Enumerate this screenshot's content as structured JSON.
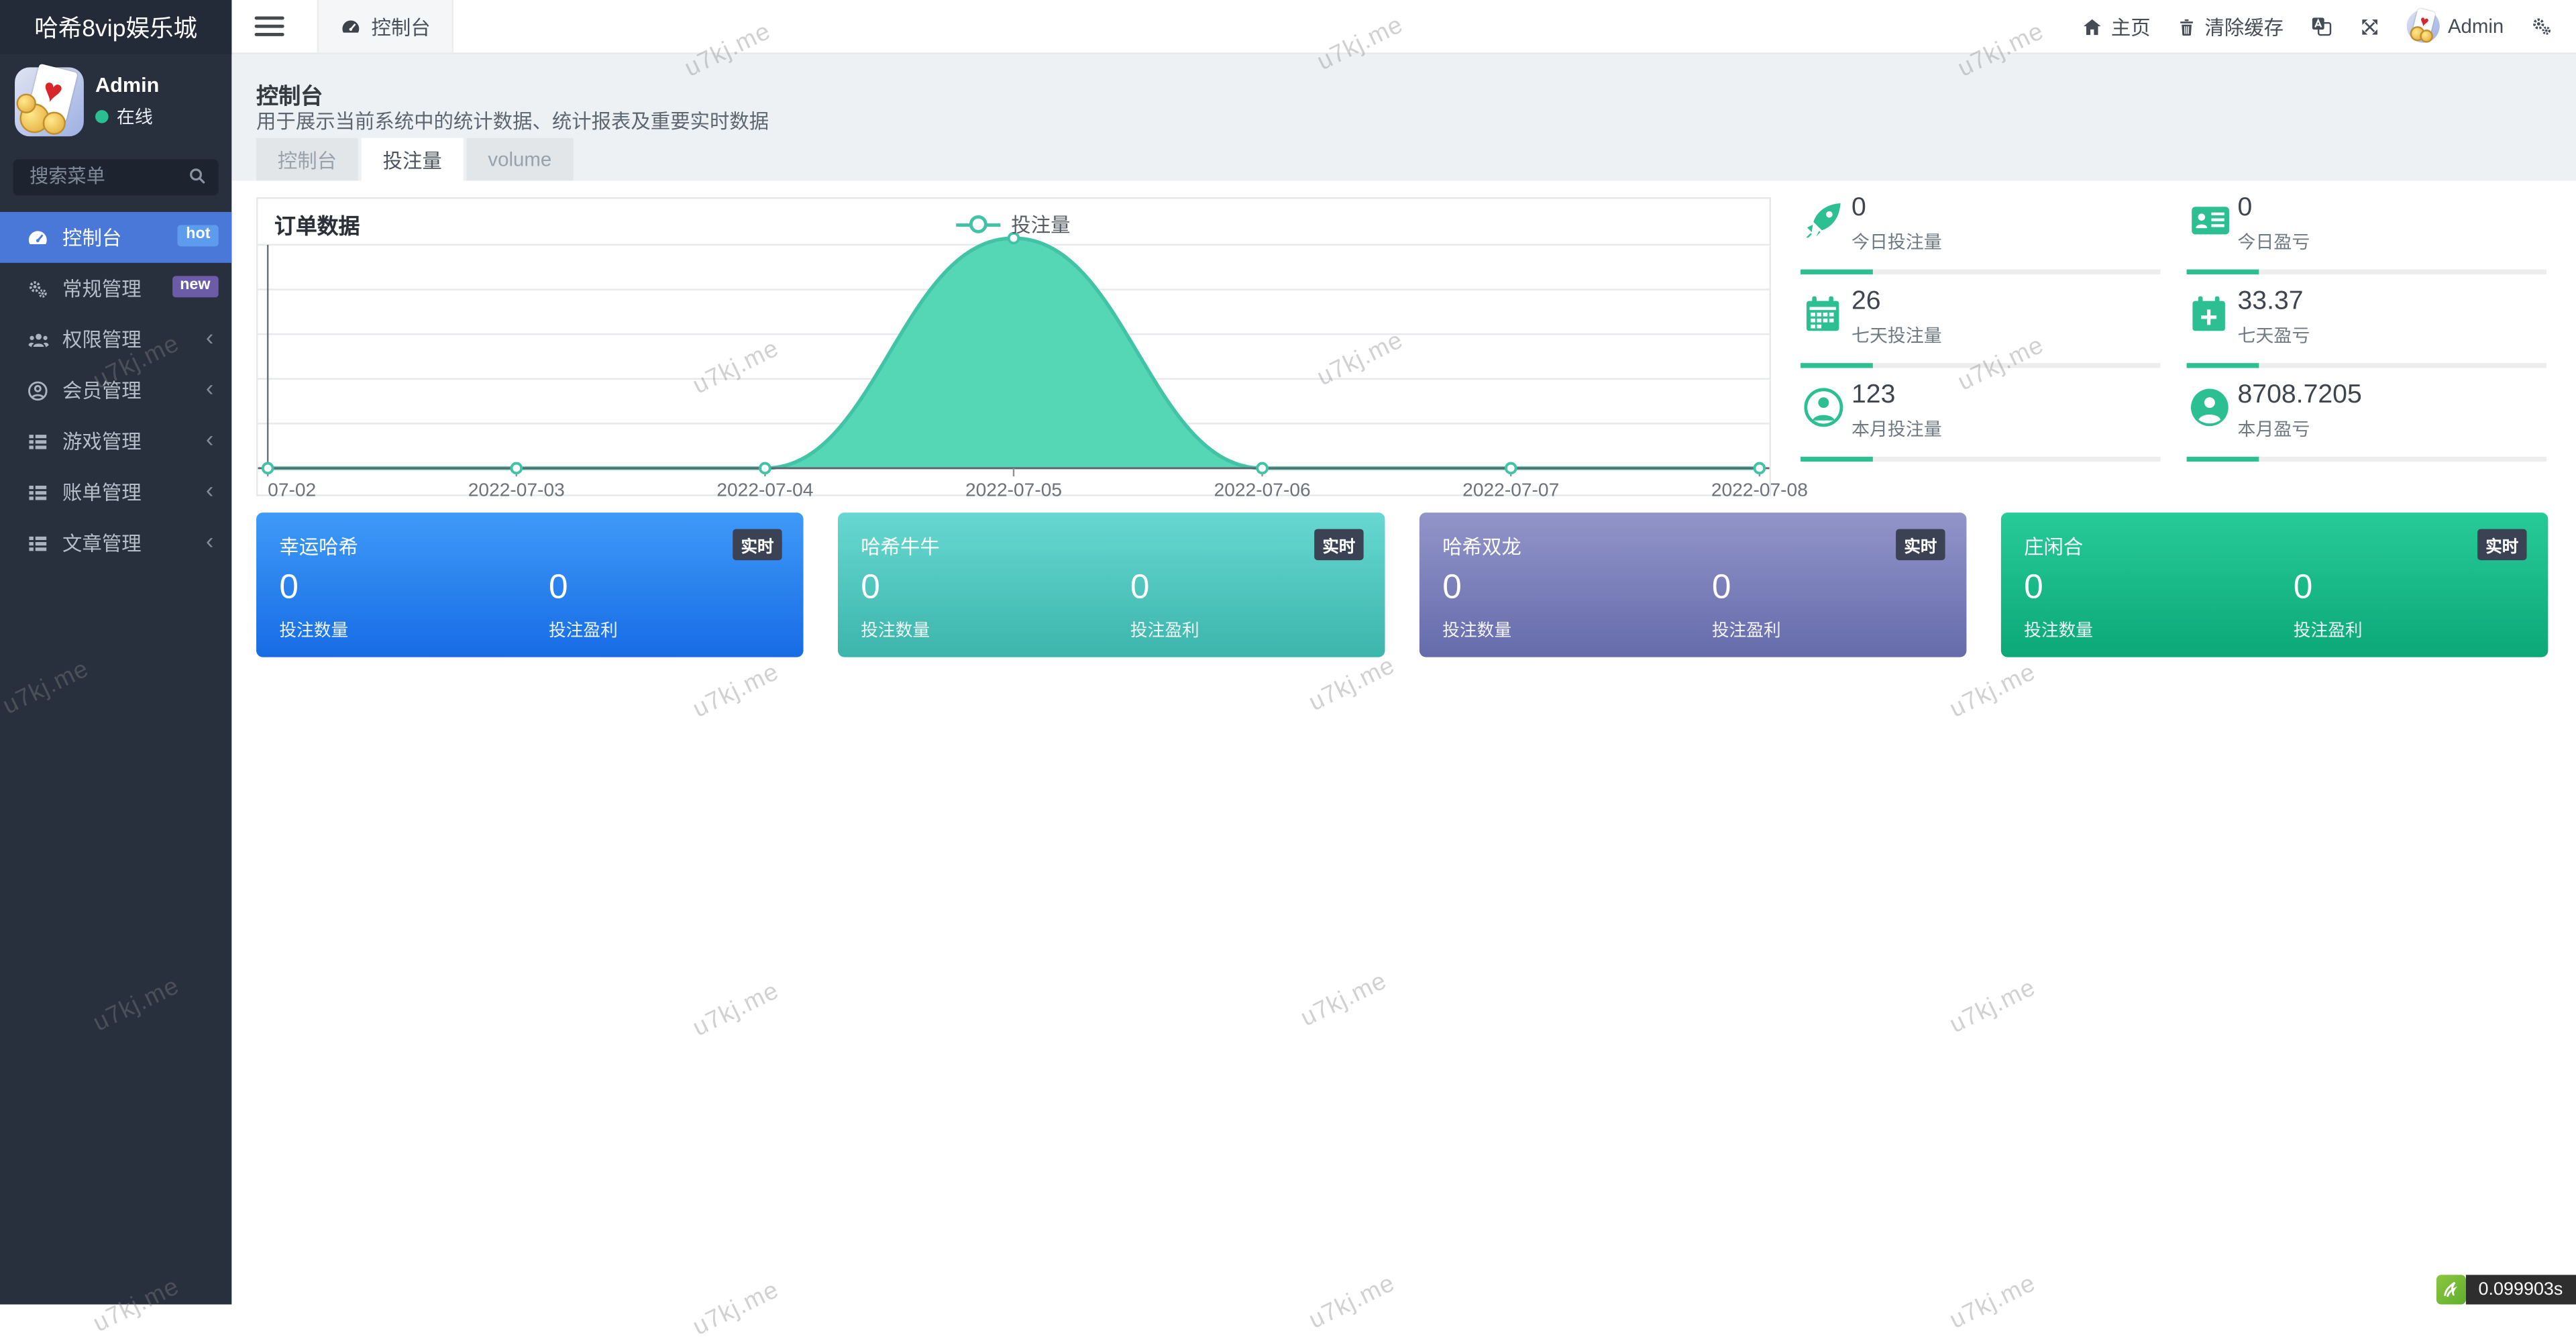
{
  "watermark_text": "u7kj.me",
  "sidebar": {
    "brand": "哈希8vip娱乐城",
    "user_name": "Admin",
    "user_status": "在线",
    "search_placeholder": "搜索菜单",
    "menu": [
      {
        "label": "控制台",
        "badge": "hot"
      },
      {
        "label": "常规管理",
        "badge": "new"
      },
      {
        "label": "权限管理"
      },
      {
        "label": "会员管理"
      },
      {
        "label": "游戏管理"
      },
      {
        "label": "账单管理"
      },
      {
        "label": "文章管理"
      }
    ]
  },
  "navbar": {
    "active_tab": "控制台",
    "home_label": "主页",
    "clear_cache_label": "清除缓存",
    "user_name": "Admin"
  },
  "page_header": {
    "title": "控制台",
    "description": "用于展示当前系统中的统计数据、统计报表及重要实时数据"
  },
  "content_tabs": [
    {
      "label": "控制台"
    },
    {
      "label": "投注量"
    },
    {
      "label": "volume"
    }
  ],
  "chart_data": {
    "type": "area",
    "title": "订单数据",
    "legend": "投注量",
    "x": [
      "07-02",
      "2022-07-03",
      "2022-07-04",
      "2022-07-05",
      "2022-07-06",
      "2022-07-07",
      "2022-07-08"
    ],
    "values": [
      0,
      0,
      0,
      26,
      0,
      0,
      0
    ],
    "ymax": 26,
    "grid_splits": 5,
    "grid": true,
    "smooth": true,
    "line_color": "#41c3a5",
    "area_color": "#55d7b6",
    "legend_position": "top-center"
  },
  "stats": [
    {
      "value": "0",
      "label": "今日投注量"
    },
    {
      "value": "0",
      "label": "今日盈亏"
    },
    {
      "value": "26",
      "label": "七天投注量"
    },
    {
      "value": "33.37",
      "label": "七天盈亏"
    },
    {
      "value": "123",
      "label": "本月投注量"
    },
    {
      "value": "8708.7205",
      "label": "本月盈亏"
    }
  ],
  "stats_accent": "#2cbf92",
  "game_cards": [
    {
      "title": "幸运哈希",
      "badge": "实时",
      "bet_count": "0",
      "bet_count_label": "投注数量",
      "profit": "0",
      "profit_label": "投注盈利",
      "color_from": "#3e9af8",
      "color_to": "#176ce5"
    },
    {
      "title": "哈希牛牛",
      "badge": "实时",
      "bet_count": "0",
      "bet_count_label": "投注数量",
      "profit": "0",
      "profit_label": "投注盈利",
      "color_from": "#67d8d1",
      "color_to": "#3cb5ab"
    },
    {
      "title": "哈希双龙",
      "badge": "实时",
      "bet_count": "0",
      "bet_count_label": "投注数量",
      "profit": "0",
      "profit_label": "投注盈利",
      "color_from": "#9195c9",
      "color_to": "#666bab"
    },
    {
      "title": "庄闲合",
      "badge": "实时",
      "bet_count": "0",
      "bet_count_label": "投注数量",
      "profit": "0",
      "profit_label": "投注盈利",
      "color_from": "#27cb97",
      "color_to": "#0ca878"
    }
  ],
  "footer": {
    "debug_time": "0.099903s"
  }
}
